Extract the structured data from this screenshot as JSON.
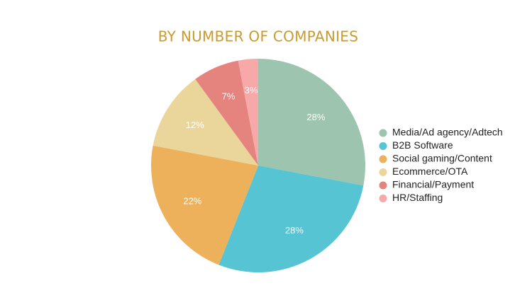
{
  "chart_data": {
    "type": "pie",
    "title": "BY NUMBER OF COMPANIES",
    "categories": [
      "Media/Ad agency/Adtech",
      "B2B Software",
      "Social gaming/Content",
      "Ecommerce/OTA",
      "Financial/Payment",
      "HR/Staffing"
    ],
    "values": [
      28,
      28,
      22,
      12,
      7,
      3
    ],
    "value_labels": [
      "28%",
      "28%",
      "22%",
      "12%",
      "7%",
      "3%"
    ],
    "colors": [
      "#9dc4ae",
      "#56c4d2",
      "#ecb15a",
      "#ead69b",
      "#e5847f",
      "#f7a9a9"
    ],
    "legend": "right"
  }
}
